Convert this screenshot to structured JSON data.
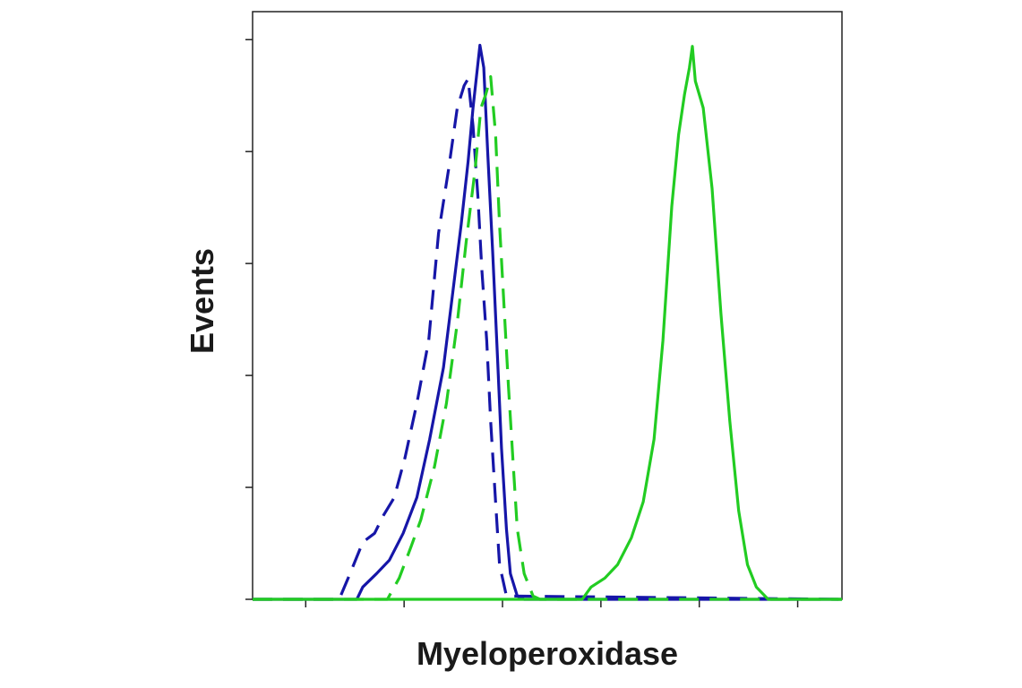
{
  "chart_data": {
    "type": "line",
    "x_label": "Myeloperoxidase",
    "y_label": "Events",
    "xlim": [
      0.46,
      6.45
    ],
    "ylim": [
      0,
      5.25
    ],
    "xticks": [
      1,
      2,
      3,
      4,
      5,
      6
    ],
    "yticks": [
      0,
      1,
      2,
      3,
      4,
      5
    ],
    "series": [
      {
        "color": "#1616a8",
        "dash": false,
        "x": [
          0.46,
          1.52,
          1.58,
          1.72,
          1.85,
          1.99,
          2.13,
          2.26,
          2.4,
          2.49,
          2.58,
          2.65,
          2.7,
          2.75,
          2.77,
          2.81,
          2.85,
          2.9,
          2.95,
          2.99,
          3.04,
          3.08,
          3.15,
          3.22,
          6.45
        ],
        "values": [
          0,
          0,
          0.11,
          0.23,
          0.35,
          0.59,
          0.91,
          1.43,
          2.07,
          2.71,
          3.35,
          3.91,
          4.39,
          4.79,
          4.95,
          4.75,
          3.99,
          3.11,
          2.15,
          1.35,
          0.63,
          0.23,
          0.03,
          0,
          0
        ]
      },
      {
        "color": "#1616a8",
        "dash": true,
        "x": [
          0.46,
          1.34,
          1.45,
          1.58,
          1.7,
          1.79,
          1.9,
          2.01,
          2.13,
          2.25,
          2.35,
          2.45,
          2.54,
          2.61,
          2.65,
          2.7,
          2.75,
          2.79,
          2.84,
          2.88,
          2.93,
          2.97,
          3.04,
          6.45
        ],
        "values": [
          0,
          0,
          0.23,
          0.51,
          0.59,
          0.75,
          0.91,
          1.27,
          1.75,
          2.31,
          3.27,
          3.83,
          4.39,
          4.59,
          4.65,
          4.23,
          3.59,
          2.95,
          2.31,
          1.59,
          0.87,
          0.31,
          0.03,
          0
        ]
      },
      {
        "color": "#22cc22",
        "dash": true,
        "x": [
          0.46,
          1.83,
          1.95,
          2.07,
          2.17,
          2.31,
          2.43,
          2.54,
          2.63,
          2.72,
          2.78,
          2.83,
          2.88,
          2.93,
          2.97,
          3.02,
          3.06,
          3.11,
          3.15,
          3.22,
          3.31,
          3.38,
          6.45
        ],
        "values": [
          0,
          0,
          0.19,
          0.47,
          0.71,
          1.19,
          1.75,
          2.47,
          3.19,
          3.83,
          4.39,
          4.51,
          4.67,
          4.15,
          3.35,
          2.55,
          1.91,
          1.19,
          0.63,
          0.23,
          0.03,
          0,
          0
        ]
      },
      {
        "color": "#22cc22",
        "dash": false,
        "x": [
          0.46,
          3.81,
          3.9,
          4.04,
          4.17,
          4.31,
          4.43,
          4.54,
          4.63,
          4.72,
          4.79,
          4.85,
          4.9,
          4.93,
          4.96,
          5.04,
          5.13,
          5.22,
          5.31,
          5.4,
          5.49,
          5.58,
          5.7,
          6.45
        ],
        "values": [
          0,
          0,
          0.11,
          0.19,
          0.31,
          0.55,
          0.87,
          1.43,
          2.31,
          3.51,
          4.15,
          4.51,
          4.75,
          4.94,
          4.63,
          4.39,
          3.67,
          2.55,
          1.59,
          0.79,
          0.31,
          0.11,
          0,
          0
        ]
      }
    ]
  }
}
